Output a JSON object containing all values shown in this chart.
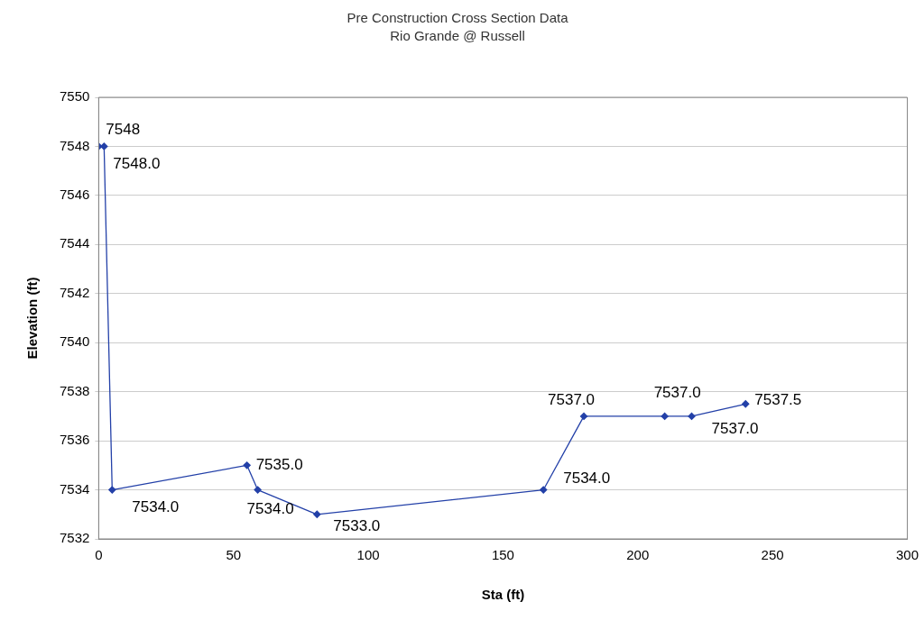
{
  "chart_data": {
    "type": "line",
    "title": "Pre Construction Cross Section Data",
    "subtitle": "Rio Grande @ Russell",
    "xlabel": "Sta (ft)",
    "ylabel": "Elevation (ft)",
    "x": [
      0,
      2,
      5,
      55,
      59,
      81,
      165,
      180,
      210,
      220,
      240
    ],
    "series": [
      {
        "color": "#2340a8",
        "values": [
          7548,
          7548,
          7534,
          7535,
          7534,
          7533,
          7534,
          7537,
          7537,
          7537,
          7537.5
        ],
        "value_labels": [
          "7548",
          "7548.0",
          "7534.0",
          "7535.0",
          "7534.0",
          "7533.0",
          "7534.0",
          "7537.0",
          "7537.0",
          "7537.0",
          "7537.5"
        ]
      }
    ],
    "xlim": [
      0,
      300
    ],
    "xticks": [
      0,
      50,
      100,
      150,
      200,
      250,
      300
    ],
    "ylim": [
      7532,
      7550
    ],
    "yticks": [
      7532,
      7534,
      7536,
      7538,
      7540,
      7542,
      7544,
      7546,
      7548,
      7550
    ],
    "grid": "y",
    "legend": false,
    "marker": "diamond",
    "line_style": "solid"
  }
}
